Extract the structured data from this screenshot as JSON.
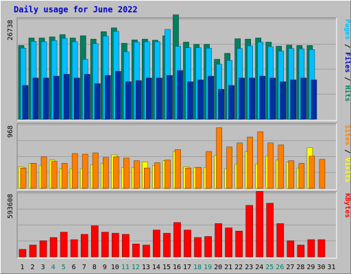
{
  "title": "Daily usage for June 2022",
  "colors": {
    "background": "#c0c0c0",
    "hits": "#00805f",
    "files": "#00bfff",
    "pages": "#00309f",
    "visits": "#ffff00",
    "sites": "#ff8000",
    "kbytes": "#ff0000",
    "weekend_label": "#00805f",
    "title": "#0000cc"
  },
  "chart_data": [
    {
      "type": "bar",
      "panel": "top",
      "ymax_label": "26738",
      "ylim": [
        0,
        26738
      ],
      "legend": [
        {
          "label": "Hits",
          "color": "#00805f"
        },
        {
          "label": "Files",
          "color": "#0000cc"
        },
        {
          "label": "Pages",
          "color": "#00bfff"
        }
      ],
      "categories": [
        "1",
        "2",
        "3",
        "4",
        "5",
        "6",
        "7",
        "8",
        "9",
        "10",
        "11",
        "12",
        "13",
        "14",
        "15",
        "16",
        "17",
        "18",
        "19",
        "20",
        "21",
        "22",
        "23",
        "24",
        "25",
        "26",
        "27",
        "28",
        "29",
        "30",
        "31"
      ],
      "series": [
        {
          "name": "Hits",
          "values": [
            19700,
            21700,
            21700,
            22000,
            22600,
            21700,
            22300,
            21400,
            23400,
            24400,
            20300,
            21200,
            21400,
            21100,
            22300,
            27900,
            20600,
            20000,
            20000,
            16000,
            17600,
            21500,
            21400,
            21700,
            20600,
            19500,
            19800,
            19700,
            19700,
            0,
            0
          ]
        },
        {
          "name": "Files",
          "values": [
            19000,
            20800,
            20700,
            21000,
            21600,
            20700,
            16000,
            20200,
            22200,
            23500,
            18000,
            20600,
            20700,
            20700,
            24000,
            19500,
            19100,
            19100,
            19000,
            14700,
            15700,
            18900,
            19600,
            20600,
            19400,
            18200,
            18900,
            18800,
            18600,
            0,
            0
          ]
        },
        {
          "name": "Pages",
          "values": [
            9000,
            11000,
            11000,
            11500,
            12000,
            11000,
            12000,
            9500,
            11700,
            12800,
            10000,
            10300,
            11000,
            11000,
            11700,
            13000,
            10000,
            10500,
            11500,
            8000,
            9000,
            11000,
            11000,
            11500,
            11000,
            10000,
            10500,
            11000,
            10500,
            0,
            0
          ]
        }
      ]
    },
    {
      "type": "bar",
      "panel": "middle",
      "ymax_label": "968",
      "ylim": [
        0,
        968
      ],
      "legend": [
        {
          "label": "Visits",
          "color": "#ffff00"
        },
        {
          "label": "Sites",
          "color": "#ff8000"
        }
      ],
      "categories": [
        "1",
        "2",
        "3",
        "4",
        "5",
        "6",
        "7",
        "8",
        "9",
        "10",
        "11",
        "12",
        "13",
        "14",
        "15",
        "16",
        "17",
        "18",
        "19",
        "20",
        "21",
        "22",
        "23",
        "24",
        "25",
        "26",
        "27",
        "28",
        "29",
        "30",
        "31"
      ],
      "series": [
        {
          "name": "Visits",
          "values": [
            330,
            380,
            350,
            430,
            300,
            300,
            300,
            360,
            380,
            510,
            320,
            320,
            400,
            350,
            420,
            560,
            330,
            320,
            320,
            500,
            300,
            370,
            560,
            370,
            490,
            430,
            400,
            310,
            620,
            0,
            0
          ]
        },
        {
          "name": "Sites",
          "values": [
            310,
            380,
            480,
            410,
            380,
            530,
            520,
            540,
            470,
            480,
            460,
            420,
            310,
            390,
            430,
            590,
            310,
            320,
            560,
            920,
            630,
            690,
            780,
            860,
            690,
            660,
            420,
            380,
            490,
            440,
            0
          ]
        }
      ]
    },
    {
      "type": "bar",
      "panel": "bottom",
      "ymax_label": "593608",
      "ylim": [
        0,
        593608
      ],
      "legend": [
        {
          "label": "KBytes",
          "color": "#ff0000"
        }
      ],
      "categories": [
        "1",
        "2",
        "3",
        "4",
        "5",
        "6",
        "7",
        "8",
        "9",
        "10",
        "11",
        "12",
        "13",
        "14",
        "15",
        "16",
        "17",
        "18",
        "19",
        "20",
        "21",
        "22",
        "23",
        "24",
        "25",
        "26",
        "27",
        "28",
        "29",
        "30",
        "31"
      ],
      "series": [
        {
          "name": "KBytes",
          "values": [
            70000,
            110000,
            150000,
            180000,
            230000,
            160000,
            210000,
            290000,
            230000,
            220000,
            210000,
            120000,
            110000,
            250000,
            220000,
            320000,
            250000,
            180000,
            190000,
            310000,
            270000,
            240000,
            480000,
            610000,
            500000,
            310000,
            150000,
            110000,
            160000,
            160000,
            0
          ]
        }
      ]
    }
  ],
  "x_labels": [
    {
      "t": "1",
      "weekend": false
    },
    {
      "t": "2",
      "weekend": false
    },
    {
      "t": "3",
      "weekend": false
    },
    {
      "t": "4",
      "weekend": true
    },
    {
      "t": "5",
      "weekend": true
    },
    {
      "t": "6",
      "weekend": false
    },
    {
      "t": "7",
      "weekend": false
    },
    {
      "t": "8",
      "weekend": false
    },
    {
      "t": "9",
      "weekend": false
    },
    {
      "t": "10",
      "weekend": false
    },
    {
      "t": "11",
      "weekend": true
    },
    {
      "t": "12",
      "weekend": true
    },
    {
      "t": "13",
      "weekend": false
    },
    {
      "t": "14",
      "weekend": false
    },
    {
      "t": "15",
      "weekend": false
    },
    {
      "t": "16",
      "weekend": false
    },
    {
      "t": "17",
      "weekend": false
    },
    {
      "t": "18",
      "weekend": true
    },
    {
      "t": "19",
      "weekend": true
    },
    {
      "t": "20",
      "weekend": false
    },
    {
      "t": "21",
      "weekend": false
    },
    {
      "t": "22",
      "weekend": false
    },
    {
      "t": "23",
      "weekend": false
    },
    {
      "t": "24",
      "weekend": false
    },
    {
      "t": "25",
      "weekend": true
    },
    {
      "t": "26",
      "weekend": true
    },
    {
      "t": "27",
      "weekend": false
    },
    {
      "t": "28",
      "weekend": false
    },
    {
      "t": "29",
      "weekend": false
    },
    {
      "t": "30",
      "weekend": false
    },
    {
      "t": "31",
      "weekend": false
    }
  ]
}
